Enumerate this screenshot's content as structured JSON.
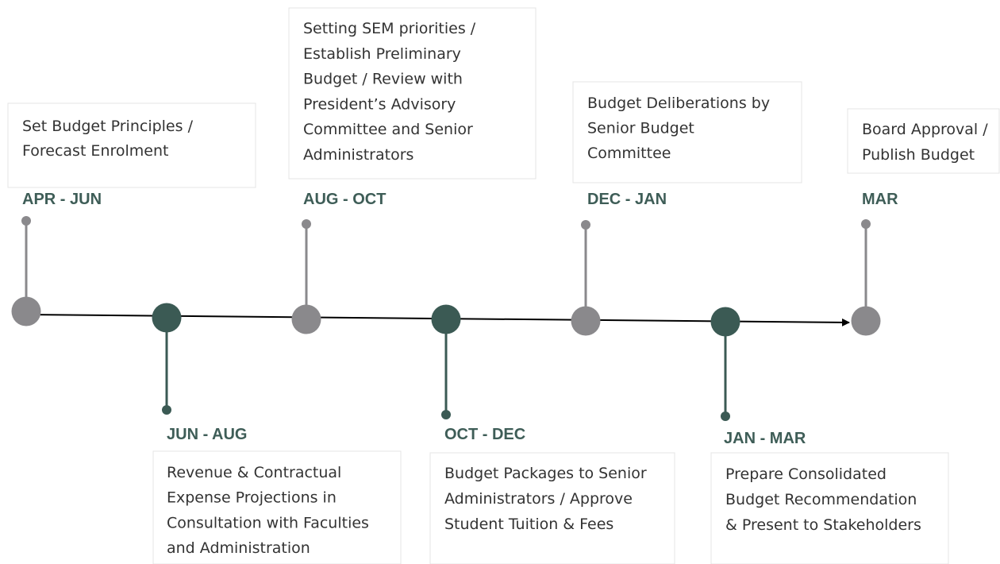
{
  "nodes": [
    {
      "period": "APR - JUN",
      "lines": [
        "Set Budget Principles /",
        "Forecast Enrolment"
      ]
    },
    {
      "period": "JUN - AUG",
      "lines": [
        "Revenue & Contractual",
        "Expense Projections in",
        "Consultation with Faculties",
        "and Administration"
      ]
    },
    {
      "period": "AUG - OCT",
      "lines": [
        "Setting SEM priorities /",
        "Establish Preliminary",
        "Budget / Review with",
        "President’s Advisory",
        "Committee and Senior",
        "Administrators"
      ]
    },
    {
      "period": "OCT - DEC",
      "lines": [
        "Budget Packages to Senior",
        "Administrators / Approve",
        "Student Tuition & Fees"
      ]
    },
    {
      "period": "DEC - JAN",
      "lines": [
        "Budget Deliberations by",
        "Senior Budget",
        "Committee"
      ]
    },
    {
      "period": "JAN - MAR",
      "lines": [
        "Prepare Consolidated",
        "Budget Recommendation",
        "& Present to Stakeholders"
      ]
    },
    {
      "period": "MAR",
      "lines": [
        "Board Approval /",
        "Publish Budget"
      ]
    }
  ]
}
